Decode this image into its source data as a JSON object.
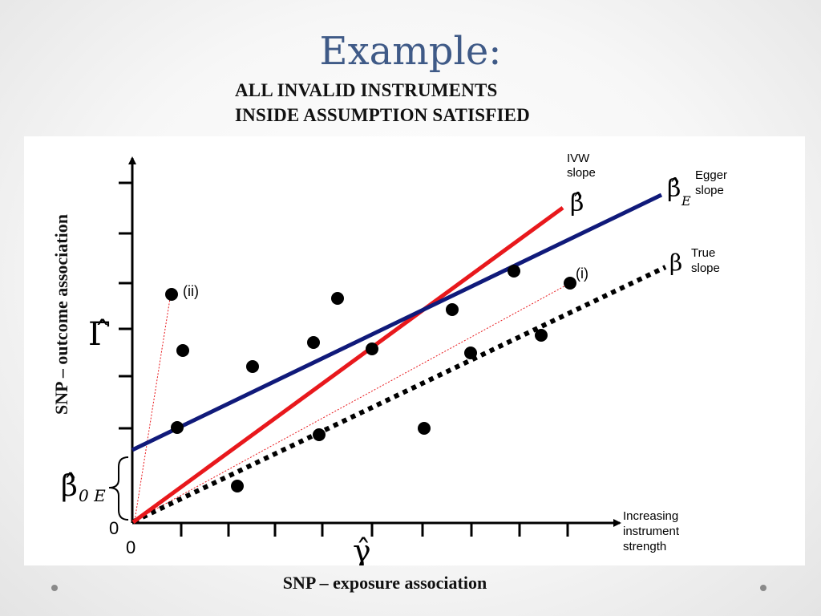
{
  "title": "Example:",
  "subtitle_lines": [
    "ALL INVALID INSTRUMENTS",
    "INSIDE ASSUMPTION SATISFIED"
  ],
  "y_axis_title": "SNP – outcome association",
  "x_axis_title": "SNP – exposure association",
  "figure": {
    "origin_y_label": "0",
    "origin_x_label": "0",
    "y_axis_symbol": "Γ̂",
    "x_axis_symbol": "γ̂",
    "intercept_symbol": "β̂",
    "intercept_subscript": "0 E",
    "x_direction_label": [
      "Increasing",
      "instrument",
      "strength"
    ],
    "point_labels": {
      "ii": "(ii)",
      "i": "(i)"
    },
    "lines": {
      "ivw": {
        "label": [
          "IVW",
          "slope"
        ],
        "symbol": "β̂",
        "color": "#e8181c"
      },
      "egger": {
        "label": [
          "Egger",
          "slope"
        ],
        "symbol": "β̂",
        "subscript": "E",
        "color": "#101a7a"
      },
      "true": {
        "label": [
          "True",
          "slope"
        ],
        "symbol": "β",
        "color": "#000000"
      }
    }
  },
  "colors": {
    "title": "#3f5a87",
    "ivw": "#e8181c",
    "egger": "#101a7a",
    "true": "#000000",
    "guide": "#e8181c"
  }
}
